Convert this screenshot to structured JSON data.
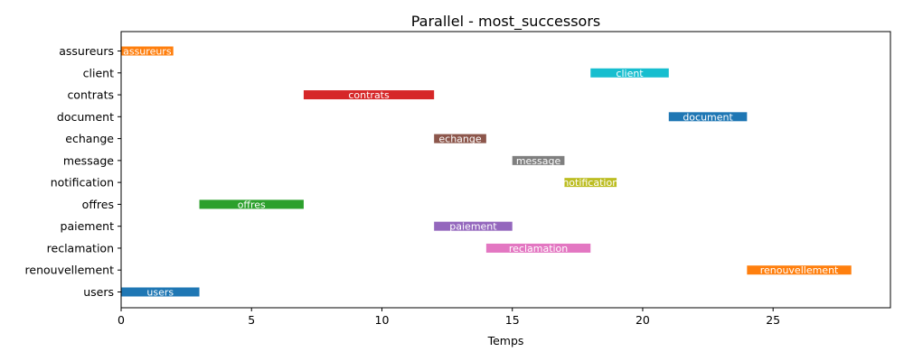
{
  "chart_data": {
    "type": "gantt",
    "title": "Parallel - most_successors",
    "xlabel": "Temps",
    "ylabel": "",
    "xlim": [
      0,
      29.5
    ],
    "xticks": [
      "0",
      "5",
      "10",
      "15",
      "20",
      "25"
    ],
    "grid": false,
    "tasks": [
      {
        "name": "assureurs",
        "start": 0,
        "end": 2,
        "color": "#ff7f0e"
      },
      {
        "name": "client",
        "start": 18,
        "end": 21,
        "color": "#17becf"
      },
      {
        "name": "contrats",
        "start": 7,
        "end": 12,
        "color": "#d62728"
      },
      {
        "name": "document",
        "start": 21,
        "end": 24,
        "color": "#1f77b4"
      },
      {
        "name": "echange",
        "start": 12,
        "end": 14,
        "color": "#8c564b"
      },
      {
        "name": "message",
        "start": 15,
        "end": 17,
        "color": "#7f7f7f"
      },
      {
        "name": "notification",
        "start": 17,
        "end": 19,
        "color": "#bcbd22"
      },
      {
        "name": "offres",
        "start": 3,
        "end": 7,
        "color": "#2ca02c"
      },
      {
        "name": "paiement",
        "start": 12,
        "end": 15,
        "color": "#9467bd"
      },
      {
        "name": "reclamation",
        "start": 14,
        "end": 18,
        "color": "#e377c2"
      },
      {
        "name": "renouvellement",
        "start": 24,
        "end": 28,
        "color": "#ff7f0e"
      },
      {
        "name": "users",
        "start": 0,
        "end": 3,
        "color": "#1f77b4"
      }
    ]
  }
}
